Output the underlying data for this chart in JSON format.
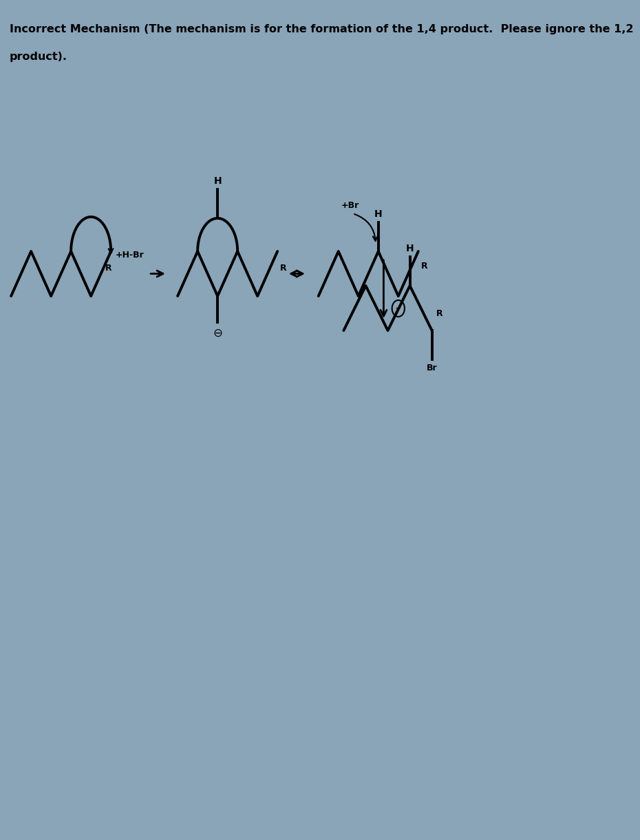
{
  "title_line1": "Incorrect Mechanism (The mechanism is for the formation of the 1,4 product.  Please ignore the 1,2",
  "title_line2": "product).",
  "bg_color": "#8aa4b8",
  "text_color": "#000000",
  "lw": 2.8
}
